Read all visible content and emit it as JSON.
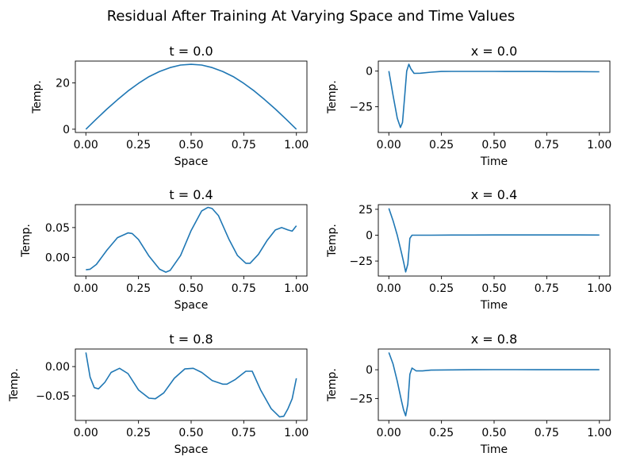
{
  "figure_title": "Residual After Training At Varying Space and Time Values",
  "line_color": "#1f77b4",
  "chart_data": [
    {
      "type": "line",
      "title": "t = 0.0",
      "xlabel": "Space",
      "ylabel": "Temp.",
      "xlim": [
        -0.05,
        1.05
      ],
      "ylim": [
        -1.4,
        29.4
      ],
      "xticks": [
        0.0,
        0.25,
        0.5,
        0.75,
        1.0
      ],
      "xtick_labels": [
        "0.00",
        "0.25",
        "0.50",
        "0.75",
        "1.00"
      ],
      "yticks": [
        0,
        20
      ],
      "ytick_labels": [
        "0",
        "20"
      ],
      "x": [
        0.0,
        0.05,
        0.1,
        0.15,
        0.2,
        0.25,
        0.3,
        0.35,
        0.4,
        0.45,
        0.5,
        0.55,
        0.6,
        0.65,
        0.7,
        0.75,
        0.8,
        0.85,
        0.9,
        0.95,
        1.0
      ],
      "y": [
        0.0,
        4.4,
        8.7,
        12.7,
        16.5,
        19.8,
        22.7,
        24.9,
        26.6,
        27.7,
        28.0,
        27.7,
        26.6,
        24.9,
        22.7,
        19.8,
        16.5,
        12.7,
        8.7,
        4.4,
        0.0
      ]
    },
    {
      "type": "line",
      "title": "x = 0.0",
      "xlabel": "Time",
      "ylabel": "Temp.",
      "xlim": [
        -0.05,
        1.05
      ],
      "ylim": [
        -43,
        7
      ],
      "xticks": [
        0.0,
        0.25,
        0.5,
        0.75,
        1.0
      ],
      "xtick_labels": [
        "0.00",
        "0.25",
        "0.50",
        "0.75",
        "1.00"
      ],
      "yticks": [
        -25,
        0
      ],
      "ytick_labels": [
        "−25",
        "0"
      ],
      "x": [
        0.0,
        0.02,
        0.04,
        0.055,
        0.065,
        0.075,
        0.085,
        0.095,
        0.105,
        0.12,
        0.15,
        0.2,
        0.25,
        0.3,
        0.4,
        0.5,
        0.6,
        0.7,
        0.8,
        0.9,
        1.0
      ],
      "y": [
        0.0,
        -17.0,
        -33.0,
        -39.5,
        -36.0,
        -18.0,
        0.0,
        4.8,
        1.5,
        -1.6,
        -1.5,
        -0.8,
        -0.3,
        -0.2,
        -0.2,
        -0.2,
        -0.3,
        -0.3,
        -0.4,
        -0.4,
        -0.5
      ]
    },
    {
      "type": "line",
      "title": "t = 0.4",
      "xlabel": "Space",
      "ylabel": "Temp.",
      "xlim": [
        -0.05,
        1.05
      ],
      "ylim": [
        -0.0315,
        0.0885
      ],
      "xticks": [
        0.0,
        0.25,
        0.5,
        0.75,
        1.0
      ],
      "xtick_labels": [
        "0.00",
        "0.25",
        "0.50",
        "0.75",
        "1.00"
      ],
      "yticks": [
        0.0,
        0.05
      ],
      "ytick_labels": [
        "0.00",
        "0.05"
      ],
      "x": [
        0.0,
        0.02,
        0.05,
        0.1,
        0.15,
        0.2,
        0.22,
        0.25,
        0.3,
        0.35,
        0.38,
        0.4,
        0.45,
        0.5,
        0.55,
        0.58,
        0.6,
        0.63,
        0.68,
        0.72,
        0.76,
        0.78,
        0.82,
        0.86,
        0.9,
        0.93,
        0.96,
        0.98,
        1.0
      ],
      "y": [
        -0.021,
        -0.02,
        -0.012,
        0.012,
        0.033,
        0.041,
        0.04,
        0.03,
        0.002,
        -0.02,
        -0.025,
        -0.022,
        0.003,
        0.045,
        0.078,
        0.084,
        0.082,
        0.07,
        0.03,
        0.003,
        -0.01,
        -0.01,
        0.005,
        0.028,
        0.046,
        0.05,
        0.046,
        0.044,
        0.053
      ]
    },
    {
      "type": "line",
      "title": "x = 0.4",
      "xlabel": "Time",
      "ylabel": "Temp.",
      "xlim": [
        -0.05,
        1.05
      ],
      "ylim": [
        -39.5,
        29.5
      ],
      "xticks": [
        0.0,
        0.25,
        0.5,
        0.75,
        1.0
      ],
      "xtick_labels": [
        "0.00",
        "0.25",
        "0.50",
        "0.75",
        "1.00"
      ],
      "yticks": [
        -25,
        0,
        25
      ],
      "ytick_labels": [
        "−25",
        "0",
        "25"
      ],
      "x": [
        0.0,
        0.02,
        0.04,
        0.06,
        0.07,
        0.08,
        0.09,
        0.1,
        0.11,
        0.13,
        0.2,
        0.3,
        0.4,
        0.5,
        0.6,
        0.7,
        0.8,
        0.9,
        1.0
      ],
      "y": [
        26.0,
        14.0,
        0.0,
        -17.0,
        -26.0,
        -35.5,
        -28.0,
        -3.0,
        0.0,
        0.0,
        0.0,
        0.1,
        0.1,
        0.2,
        0.2,
        0.2,
        0.2,
        0.2,
        0.1
      ]
    },
    {
      "type": "line",
      "title": "t = 0.8",
      "xlabel": "Space",
      "ylabel": "Temp.",
      "xlim": [
        -0.05,
        1.05
      ],
      "ylim": [
        -0.092,
        0.03
      ],
      "xticks": [
        0.0,
        0.25,
        0.5,
        0.75,
        1.0
      ],
      "xtick_labels": [
        "0.00",
        "0.25",
        "0.50",
        "0.75",
        "1.00"
      ],
      "yticks": [
        0.0,
        -0.05
      ],
      "ytick_labels": [
        "0.00",
        "−0.05"
      ],
      "x": [
        0.0,
        0.02,
        0.04,
        0.06,
        0.09,
        0.12,
        0.16,
        0.2,
        0.25,
        0.3,
        0.33,
        0.37,
        0.42,
        0.47,
        0.51,
        0.55,
        0.6,
        0.65,
        0.67,
        0.71,
        0.76,
        0.79,
        0.83,
        0.88,
        0.92,
        0.94,
        0.96,
        0.98,
        1.0
      ],
      "y": [
        0.024,
        -0.018,
        -0.036,
        -0.038,
        -0.027,
        -0.01,
        -0.003,
        -0.012,
        -0.04,
        -0.054,
        -0.055,
        -0.045,
        -0.02,
        -0.004,
        -0.003,
        -0.01,
        -0.024,
        -0.03,
        -0.03,
        -0.022,
        -0.008,
        -0.008,
        -0.04,
        -0.072,
        -0.086,
        -0.085,
        -0.072,
        -0.055,
        -0.02
      ]
    },
    {
      "type": "line",
      "title": "x = 0.8",
      "xlabel": "Time",
      "ylabel": "Temp.",
      "xlim": [
        -0.05,
        1.05
      ],
      "ylim": [
        -44,
        18
      ],
      "xticks": [
        0.0,
        0.25,
        0.5,
        0.75,
        1.0
      ],
      "xtick_labels": [
        "0.00",
        "0.25",
        "0.50",
        "0.75",
        "1.00"
      ],
      "yticks": [
        -25,
        0
      ],
      "ytick_labels": [
        "−25",
        "0"
      ],
      "x": [
        0.0,
        0.02,
        0.04,
        0.06,
        0.07,
        0.08,
        0.09,
        0.1,
        0.11,
        0.13,
        0.16,
        0.2,
        0.3,
        0.4,
        0.5,
        0.6,
        0.7,
        0.8,
        0.9,
        1.0
      ],
      "y": [
        15.0,
        5.0,
        -10.0,
        -27.0,
        -35.0,
        -40.0,
        -30.0,
        -4.0,
        1.5,
        -1.0,
        -1.0,
        -0.3,
        -0.1,
        0.0,
        0.1,
        0.1,
        0.0,
        0.0,
        0.0,
        0.0
      ]
    }
  ]
}
